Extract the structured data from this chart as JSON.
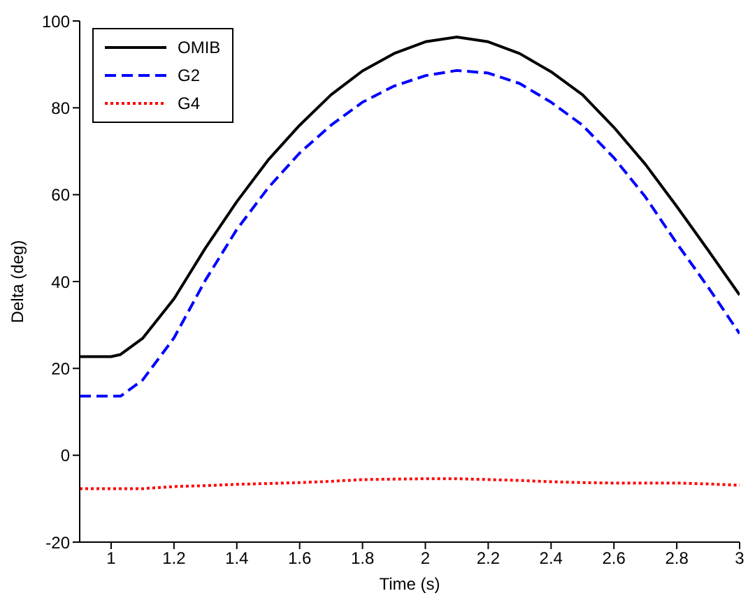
{
  "chart_data": {
    "type": "line",
    "xlabel": "Time (s)",
    "ylabel": "Delta (deg)",
    "xlim": [
      0.9,
      3
    ],
    "xticks": [
      1,
      1.2,
      1.4,
      1.6,
      1.8,
      2,
      2.2,
      2.4,
      2.6,
      2.8,
      3
    ],
    "ylim": [
      -20,
      100
    ],
    "yticks": [
      -20,
      0,
      20,
      40,
      60,
      80,
      100
    ],
    "x": [
      0.9,
      1.0,
      1.03,
      1.1,
      1.2,
      1.3,
      1.4,
      1.5,
      1.6,
      1.7,
      1.8,
      1.9,
      2.0,
      2.1,
      2.2,
      2.3,
      2.4,
      2.5,
      2.6,
      2.7,
      2.8,
      2.9,
      3.0
    ],
    "series": [
      {
        "name": "OMIB",
        "color": "#000000",
        "line_style": "solid",
        "values": [
          22.7,
          22.7,
          23.2,
          26.9,
          36,
          47.7,
          58.4,
          68,
          76,
          83,
          88.5,
          92.5,
          95.2,
          96.3,
          95.2,
          92.5,
          88.3,
          83,
          75.5,
          67,
          57.3,
          47.2,
          36.9
        ]
      },
      {
        "name": "G2",
        "color": "#0000ff",
        "line_style": "dashed",
        "values": [
          13.6,
          13.6,
          13.6,
          17.3,
          27,
          40.3,
          52,
          61.6,
          69.6,
          76,
          81.3,
          85,
          87.4,
          88.6,
          88,
          85.6,
          81.3,
          76,
          68.5,
          59.5,
          48.8,
          38.7,
          28
        ]
      },
      {
        "name": "G4",
        "color": "#ff0000",
        "line_style": "dotted",
        "values": [
          -7.7,
          -7.7,
          -7.7,
          -7.7,
          -7.2,
          -7,
          -6.7,
          -6.5,
          -6.3,
          -6,
          -5.6,
          -5.5,
          -5.4,
          -5.4,
          -5.6,
          -5.8,
          -6.1,
          -6.3,
          -6.4,
          -6.4,
          -6.4,
          -6.6,
          -6.9
        ]
      }
    ],
    "legend": "top left",
    "grid": false,
    "marker": "none"
  }
}
